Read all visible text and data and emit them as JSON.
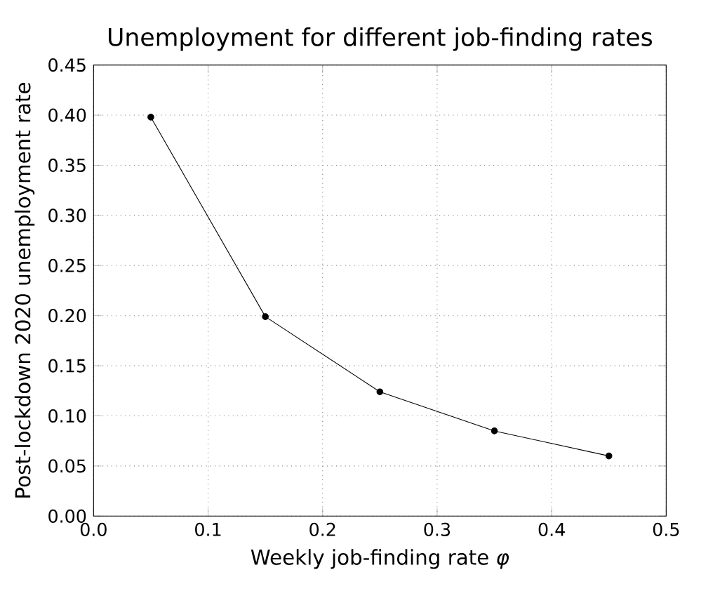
{
  "chart_data": {
    "type": "line",
    "title": "Unemployment for different job-finding rates",
    "xlabel": "Weekly job-finding rate *φ*",
    "ylabel": "Post-lockdown 2020 unemployment rate",
    "x": [
      0.05,
      0.15,
      0.25,
      0.35,
      0.45
    ],
    "series": [
      {
        "color": "#000000",
        "values": [
          0.398,
          0.199,
          0.124,
          0.085,
          0.06
        ]
      }
    ],
    "xlim": [
      0,
      0.5
    ],
    "ylim": [
      0,
      0.45
    ],
    "xticks": [
      {
        "value": 0,
        "label": "0.0"
      },
      0.1,
      0.2,
      0.3,
      0.4,
      0.5
    ],
    "yticks": [
      {
        "value": 0,
        "label": "0.00"
      },
      0.05,
      {
        "value": 0.1,
        "label": "0.10"
      },
      0.15,
      {
        "value": 0.2,
        "label": "0.20"
      },
      0.25,
      {
        "value": 0.3,
        "label": "0.30"
      },
      0.35,
      {
        "value": 0.4,
        "label": "0.40"
      },
      0.45
    ],
    "grid": true,
    "marker": "circle",
    "line_style": "solid"
  }
}
